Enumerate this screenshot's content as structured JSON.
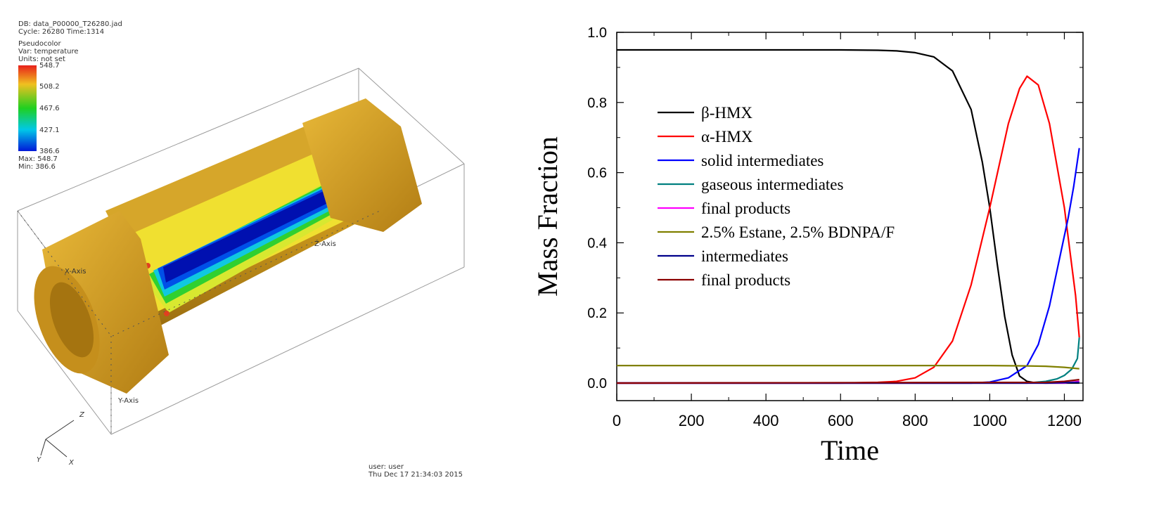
{
  "visit_panel": {
    "db_line": "DB: data_P00000_T26280.jad",
    "cycle_line": "Cycle: 26280     Time:1314",
    "plot_type": "Pseudocolor",
    "var_line": "Var: temperature",
    "units_line": "Units: not set",
    "legend_ticks": [
      "548.7",
      "508.2",
      "467.6",
      "427.1",
      "386.6"
    ],
    "max_line": "Max: 548.7",
    "min_line": "Min: 386.6",
    "x_axis_label": "X-Axis",
    "y_axis_label": "Y-Axis",
    "z_axis_label": "Z-Axis",
    "triad_z": "Z",
    "triad_y": "Y",
    "triad_x": "X",
    "user_line": "user: user",
    "date_line": "Thu Dec 17 21:34:03 2015",
    "colors": {
      "body": "#d4a52a",
      "cold": "#0012c8",
      "hot": "#e8201a"
    }
  },
  "chart_data": {
    "type": "line",
    "xlabel": "Time",
    "ylabel": "Mass Fraction",
    "xlim": [
      0,
      1250
    ],
    "ylim": [
      -0.05,
      1.0
    ],
    "x_ticks": [
      "0",
      "200",
      "400",
      "600",
      "800",
      "1000",
      "1200"
    ],
    "y_ticks": [
      "0.0",
      "0.2",
      "0.4",
      "0.6",
      "0.8",
      "1.0"
    ],
    "legend_position": "upper-left",
    "series": [
      {
        "name": "β-HMX",
        "color": "#000000",
        "x": [
          0,
          200,
          400,
          600,
          700,
          750,
          800,
          850,
          900,
          950,
          980,
          1000,
          1020,
          1040,
          1060,
          1080,
          1100,
          1120,
          1150,
          1200,
          1240
        ],
        "y": [
          0.95,
          0.95,
          0.95,
          0.95,
          0.949,
          0.947,
          0.942,
          0.93,
          0.89,
          0.78,
          0.63,
          0.5,
          0.34,
          0.19,
          0.08,
          0.02,
          0.005,
          0.001,
          0.0,
          0.0,
          0.0
        ]
      },
      {
        "name": "α-HMX",
        "color": "#ff0000",
        "x": [
          0,
          600,
          700,
          750,
          800,
          850,
          900,
          950,
          1000,
          1050,
          1080,
          1100,
          1130,
          1160,
          1200,
          1230,
          1240
        ],
        "y": [
          0.0,
          0.0,
          0.002,
          0.005,
          0.015,
          0.045,
          0.12,
          0.28,
          0.5,
          0.74,
          0.84,
          0.875,
          0.85,
          0.74,
          0.5,
          0.25,
          0.13
        ]
      },
      {
        "name": "solid intermediates",
        "color": "#0000ff",
        "x": [
          0,
          950,
          1000,
          1050,
          1100,
          1130,
          1160,
          1190,
          1210,
          1225,
          1240
        ],
        "y": [
          0.0,
          0.0,
          0.003,
          0.015,
          0.05,
          0.11,
          0.22,
          0.37,
          0.47,
          0.56,
          0.67
        ]
      },
      {
        "name": "gaseous intermediates",
        "color": "#008080",
        "x": [
          0,
          1100,
          1150,
          1180,
          1200,
          1220,
          1235,
          1240
        ],
        "y": [
          0.0,
          0.0,
          0.005,
          0.012,
          0.022,
          0.04,
          0.07,
          0.13
        ]
      },
      {
        "name": "final products",
        "color": "#ff00ff",
        "x": [
          0,
          1200,
          1240
        ],
        "y": [
          0.0,
          0.0,
          0.005
        ]
      },
      {
        "name": "2.5% Estane, 2.5% BDNPA/F",
        "color": "#808000",
        "x": [
          0,
          600,
          1000,
          1100,
          1150,
          1200,
          1240
        ],
        "y": [
          0.05,
          0.05,
          0.05,
          0.049,
          0.048,
          0.045,
          0.041
        ]
      },
      {
        "name": "intermediates",
        "color": "#00008b",
        "x": [
          0,
          1150,
          1240
        ],
        "y": [
          0.0,
          0.0,
          0.002
        ]
      },
      {
        "name": "final products",
        "color": "#8b0000",
        "x": [
          0,
          1150,
          1200,
          1240
        ],
        "y": [
          0.0,
          0.002,
          0.005,
          0.01
        ]
      }
    ]
  }
}
